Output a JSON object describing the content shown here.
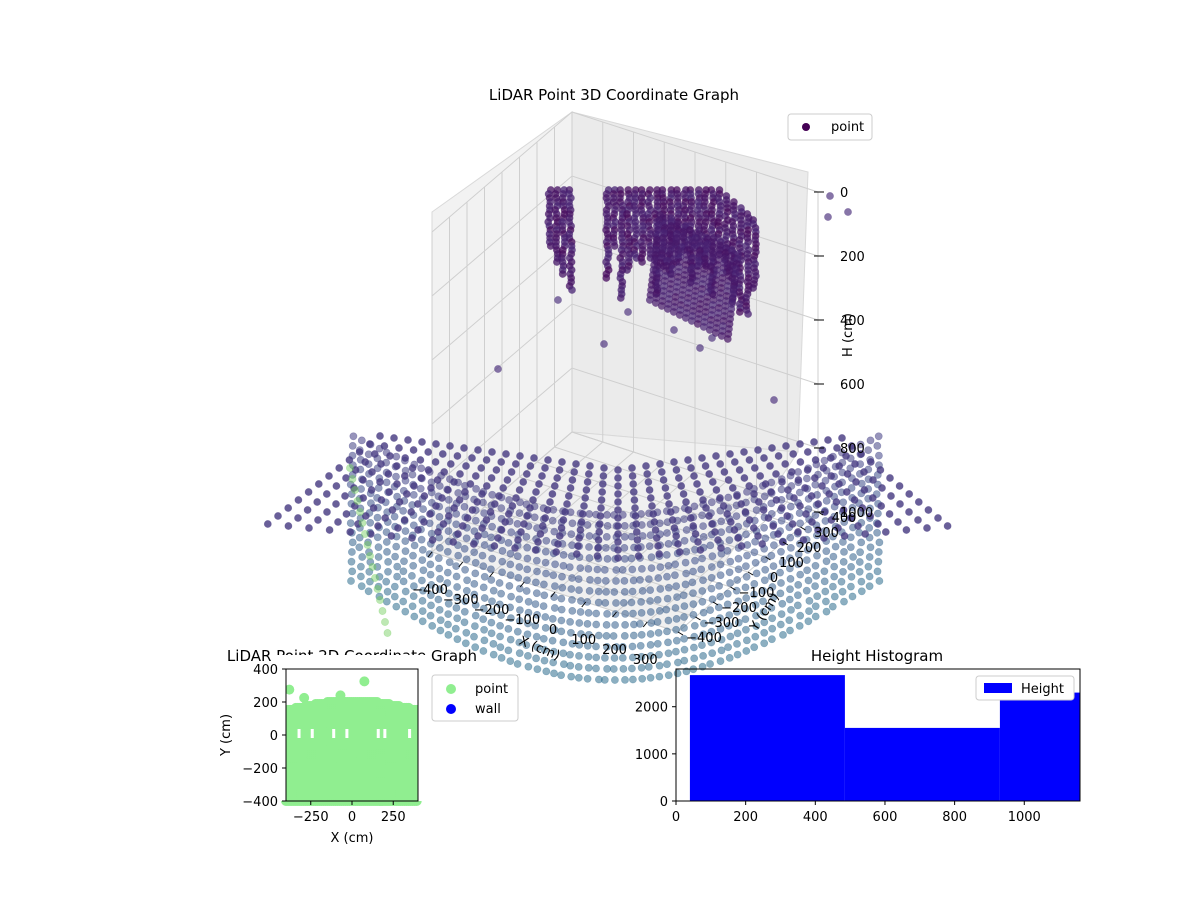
{
  "chart_data": [
    {
      "type": "scatter",
      "title": "LiDAR Point 3D Coordinate Graph",
      "xlabel": "X (cm)",
      "ylabel": "Y (cm)",
      "zlabel": "H (cm)",
      "x_ticks": [
        "−400",
        "−300",
        "−200",
        "−100",
        "0",
        "100",
        "200",
        "300"
      ],
      "y_ticks": [
        "−400",
        "−300",
        "−200",
        "−100",
        "0",
        "100",
        "200",
        "300",
        "400"
      ],
      "z_ticks": [
        "0",
        "200",
        "400",
        "600",
        "800",
        "1000"
      ],
      "xlim": [
        -400,
        400
      ],
      "ylim": [
        -400,
        400
      ],
      "zlim": [
        1000,
        0
      ],
      "z_inverted": true,
      "colormap": "viridis",
      "legend": {
        "entries": [
          {
            "label": "point",
            "color": "#440154"
          }
        ],
        "position": "top-right"
      },
      "grid": true
    },
    {
      "type": "scatter",
      "title": "LiDAR Point 2D Coordinate Graph",
      "xlabel": "X (cm)",
      "ylabel": "Y (cm)",
      "x_ticks": [
        "−250",
        "0",
        "250"
      ],
      "y_ticks": [
        "−400",
        "−200",
        "0",
        "200",
        "400"
      ],
      "xlim": [
        -400,
        400
      ],
      "ylim": [
        -400,
        400
      ],
      "series": [
        {
          "name": "point",
          "color": "#90ee90"
        },
        {
          "name": "wall",
          "color": "#0000ff"
        }
      ],
      "legend_position": "outside-right"
    },
    {
      "type": "bar",
      "title": "Height Histogram",
      "bins": [
        {
          "start": 40,
          "end": 485,
          "count": 2670
        },
        {
          "start": 485,
          "end": 930,
          "count": 1550
        },
        {
          "start": 930,
          "end": 1160,
          "count": 2300
        }
      ],
      "x_ticks": [
        "0",
        "200",
        "400",
        "600",
        "800",
        "1000"
      ],
      "y_ticks": [
        "0",
        "1000",
        "2000"
      ],
      "xlim": [
        0,
        1160
      ],
      "ylim": [
        0,
        2800
      ],
      "color": "#0000ff",
      "legend": {
        "entries": [
          {
            "label": "Height",
            "color": "#0000ff"
          }
        ],
        "position": "top-right"
      }
    }
  ]
}
